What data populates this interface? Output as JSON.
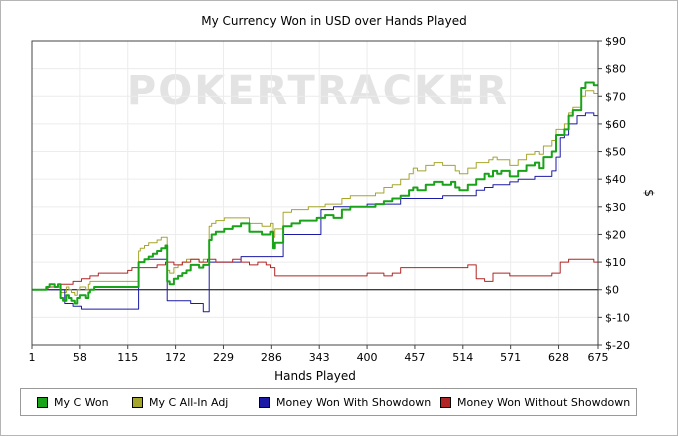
{
  "chart_data": {
    "type": "line",
    "title": "My Currency Won in USD over Hands Played",
    "xlabel": "Hands Played",
    "ylabel": "$",
    "watermark": "POKERTRACKER",
    "xlim": [
      1,
      675
    ],
    "ylim": [
      -20,
      90
    ],
    "x_ticks": [
      1,
      58,
      115,
      172,
      229,
      286,
      343,
      400,
      457,
      514,
      571,
      628,
      675
    ],
    "y_ticks": [
      -20,
      -10,
      0,
      10,
      20,
      30,
      40,
      50,
      60,
      70,
      80,
      90
    ],
    "y_tick_labels": [
      "$-20",
      "$-10",
      "$0",
      "$10",
      "$20",
      "$30",
      "$40",
      "$50",
      "$60",
      "$70",
      "$80",
      "$90"
    ],
    "grid": true,
    "legend_position": "bottom",
    "series": [
      {
        "name": "My C Won",
        "color": "#19a319",
        "x": [
          1,
          15,
          18,
          22,
          25,
          28,
          32,
          35,
          38,
          42,
          45,
          48,
          52,
          55,
          58,
          62,
          65,
          68,
          70,
          75,
          80,
          90,
          100,
          110,
          125,
          128,
          130,
          135,
          140,
          145,
          150,
          155,
          160,
          162,
          165,
          170,
          175,
          180,
          185,
          190,
          200,
          205,
          210,
          212,
          215,
          220,
          230,
          240,
          250,
          260,
          270,
          275,
          280,
          285,
          288,
          290,
          300,
          310,
          320,
          330,
          340,
          350,
          360,
          370,
          380,
          400,
          410,
          420,
          430,
          440,
          450,
          455,
          460,
          470,
          480,
          490,
          500,
          505,
          510,
          520,
          530,
          540,
          545,
          550,
          555,
          560,
          570,
          580,
          590,
          600,
          605,
          610,
          620,
          625,
          628,
          635,
          640,
          645,
          650,
          655,
          660,
          665,
          670,
          675
        ],
        "y": [
          0,
          0,
          1,
          2,
          2,
          1,
          2,
          -3,
          -4,
          -2,
          -3,
          -4,
          -5,
          -3,
          -2,
          -2,
          -3,
          -1,
          0,
          1,
          1,
          1,
          1,
          1,
          1,
          10,
          10,
          11,
          12,
          13,
          14,
          15,
          16,
          3,
          2,
          4,
          5,
          6,
          7,
          9,
          8,
          9,
          9,
          18,
          20,
          21,
          22,
          23,
          24,
          21,
          21,
          20,
          20,
          21,
          15,
          17,
          23,
          24,
          25,
          25,
          26,
          27,
          26,
          29,
          30,
          30,
          31,
          32,
          33,
          34,
          36,
          37,
          36,
          38,
          39,
          38,
          39,
          37,
          36,
          38,
          40,
          42,
          41,
          43,
          42,
          43,
          41,
          43,
          45,
          46,
          44,
          48,
          50,
          56,
          56,
          58,
          63,
          65,
          65,
          73,
          75,
          75,
          74,
          74
        ]
      },
      {
        "name": "My C All-In Adj",
        "color": "#a5a52a",
        "x": [
          1,
          15,
          18,
          22,
          25,
          28,
          32,
          35,
          38,
          42,
          45,
          48,
          52,
          55,
          58,
          62,
          65,
          68,
          70,
          75,
          80,
          90,
          100,
          110,
          125,
          128,
          130,
          135,
          140,
          145,
          150,
          155,
          160,
          162,
          165,
          170,
          175,
          180,
          185,
          190,
          200,
          205,
          210,
          212,
          215,
          220,
          230,
          240,
          250,
          260,
          270,
          275,
          280,
          285,
          288,
          290,
          300,
          310,
          320,
          330,
          340,
          350,
          360,
          370,
          380,
          400,
          410,
          420,
          430,
          440,
          450,
          455,
          460,
          470,
          480,
          490,
          500,
          505,
          510,
          520,
          530,
          540,
          545,
          550,
          555,
          560,
          570,
          580,
          590,
          600,
          605,
          610,
          620,
          625,
          628,
          635,
          640,
          645,
          650,
          655,
          660,
          665,
          670,
          675
        ],
        "y": [
          0,
          0,
          1,
          2,
          2,
          1,
          2,
          -1,
          -1,
          1,
          0,
          -1,
          -2,
          0,
          1,
          1,
          0,
          2,
          3,
          3,
          3,
          3,
          3,
          3,
          3,
          14,
          15,
          16,
          17,
          17,
          18,
          19,
          19,
          7,
          6,
          8,
          9,
          10,
          11,
          11,
          10,
          11,
          11,
          23,
          24,
          25,
          26,
          26,
          26,
          24,
          24,
          23,
          23,
          24,
          19,
          22,
          28,
          29,
          29,
          30,
          30,
          31,
          31,
          33,
          34,
          34,
          35,
          37,
          38,
          40,
          42,
          44,
          43,
          45,
          46,
          45,
          45,
          43,
          42,
          44,
          46,
          46,
          47,
          48,
          47,
          47,
          45,
          47,
          49,
          50,
          49,
          52,
          54,
          58,
          58,
          60,
          64,
          66,
          66,
          70,
          72,
          72,
          71,
          71
        ]
      },
      {
        "name": "Money Won With Showdown",
        "color": "#1a1aa6",
        "x": [
          1,
          35,
          40,
          50,
          60,
          80,
          100,
          125,
          128,
          135,
          160,
          162,
          170,
          190,
          200,
          205,
          210,
          212,
          230,
          250,
          290,
          300,
          340,
          345,
          360,
          400,
          430,
          440,
          450,
          460,
          480,
          490,
          500,
          510,
          520,
          530,
          540,
          550,
          560,
          570,
          580,
          590,
          600,
          610,
          620,
          625,
          630,
          635,
          640,
          650,
          660,
          670,
          675
        ],
        "y": [
          0,
          0,
          -5,
          -6,
          -7,
          -7,
          -7,
          -7,
          10,
          11,
          11,
          -4,
          -4,
          -5,
          -5,
          -8,
          -8,
          10,
          10,
          12,
          12,
          20,
          20,
          29,
          30,
          31,
          31,
          33,
          33,
          33,
          33,
          34,
          34,
          34,
          34,
          36,
          37,
          38,
          38,
          39,
          40,
          40,
          41,
          41,
          43,
          48,
          55,
          56,
          60,
          63,
          64,
          63,
          63
        ]
      },
      {
        "name": "Money Won Without Showdown",
        "color": "#b02424",
        "x": [
          1,
          20,
          35,
          50,
          60,
          70,
          80,
          100,
          115,
          120,
          140,
          150,
          160,
          170,
          180,
          190,
          200,
          210,
          220,
          230,
          240,
          250,
          260,
          270,
          280,
          285,
          290,
          300,
          320,
          340,
          360,
          380,
          400,
          420,
          430,
          440,
          450,
          460,
          480,
          500,
          520,
          530,
          540,
          550,
          560,
          570,
          580,
          590,
          600,
          610,
          620,
          630,
          640,
          650,
          660,
          670,
          675
        ],
        "y": [
          0,
          1,
          2,
          3,
          4,
          5,
          6,
          6,
          7,
          8,
          8,
          9,
          10,
          9,
          10,
          11,
          10,
          11,
          10,
          10,
          11,
          10,
          9,
          10,
          9,
          8,
          5,
          5,
          5,
          5,
          5,
          5,
          6,
          5,
          6,
          8,
          8,
          8,
          8,
          8,
          9,
          4,
          3,
          6,
          6,
          5,
          5,
          5,
          5,
          5,
          6,
          10,
          11,
          11,
          11,
          10,
          10
        ]
      }
    ]
  }
}
